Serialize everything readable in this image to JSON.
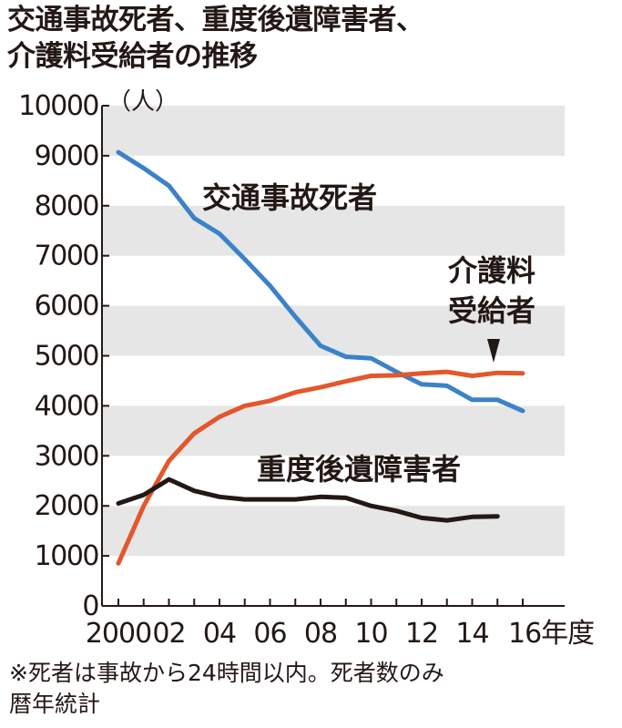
{
  "title_lines": [
    "交通事故死者、重度後遺障害者、",
    "介護料受給者の推移"
  ],
  "note_lines": [
    "※死者は事故から24時間以内。死者数のみ",
    "暦年統計"
  ],
  "chart_data": {
    "type": "line",
    "y_unit": "（人）",
    "ylim": [
      0,
      10000
    ],
    "y_ticks": [
      0,
      1000,
      2000,
      3000,
      4000,
      5000,
      6000,
      7000,
      8000,
      9000,
      10000
    ],
    "x_range": [
      2000,
      2016
    ],
    "x_ticks": [
      {
        "year": 2000,
        "label": "2000"
      },
      {
        "year": 2002,
        "label": "02"
      },
      {
        "year": 2004,
        "label": "04"
      },
      {
        "year": 2006,
        "label": "06"
      },
      {
        "year": 2008,
        "label": "08"
      },
      {
        "year": 2010,
        "label": "10"
      },
      {
        "year": 2012,
        "label": "12"
      },
      {
        "year": 2014,
        "label": "14"
      },
      {
        "year": 2016,
        "label": "16年度"
      }
    ],
    "background_bands": "alternating gray every 1000",
    "series": [
      {
        "name": "交通事故死者",
        "label_lines": [
          "交通事故死者"
        ],
        "color": "#3b82c9",
        "x": [
          2000,
          2001,
          2002,
          2003,
          2004,
          2005,
          2006,
          2007,
          2008,
          2009,
          2010,
          2011,
          2012,
          2013,
          2014,
          2015,
          2016
        ],
        "y": [
          9070,
          8750,
          8400,
          7750,
          7440,
          6930,
          6400,
          5780,
          5200,
          4980,
          4950,
          4680,
          4430,
          4400,
          4120,
          4120,
          3900
        ]
      },
      {
        "name": "介護料受給者",
        "label_lines": [
          "介護料",
          "受給者"
        ],
        "color": "#e4562b",
        "x": [
          2000,
          2001,
          2002,
          2003,
          2004,
          2005,
          2006,
          2007,
          2008,
          2009,
          2010,
          2011,
          2012,
          2013,
          2014,
          2015,
          2016
        ],
        "y": [
          850,
          2000,
          2900,
          3450,
          3780,
          4000,
          4100,
          4270,
          4370,
          4490,
          4600,
          4610,
          4650,
          4680,
          4600,
          4660,
          4650
        ]
      },
      {
        "name": "重度後遺障害者",
        "label_lines": [
          "重度後遺障害者"
        ],
        "color": "#231815",
        "x": [
          2000,
          2001,
          2002,
          2003,
          2004,
          2005,
          2006,
          2007,
          2008,
          2009,
          2010,
          2011,
          2012,
          2013,
          2014,
          2015
        ],
        "y": [
          2050,
          2220,
          2530,
          2300,
          2180,
          2130,
          2130,
          2130,
          2180,
          2160,
          2000,
          1900,
          1760,
          1710,
          1780,
          1790
        ]
      }
    ]
  }
}
